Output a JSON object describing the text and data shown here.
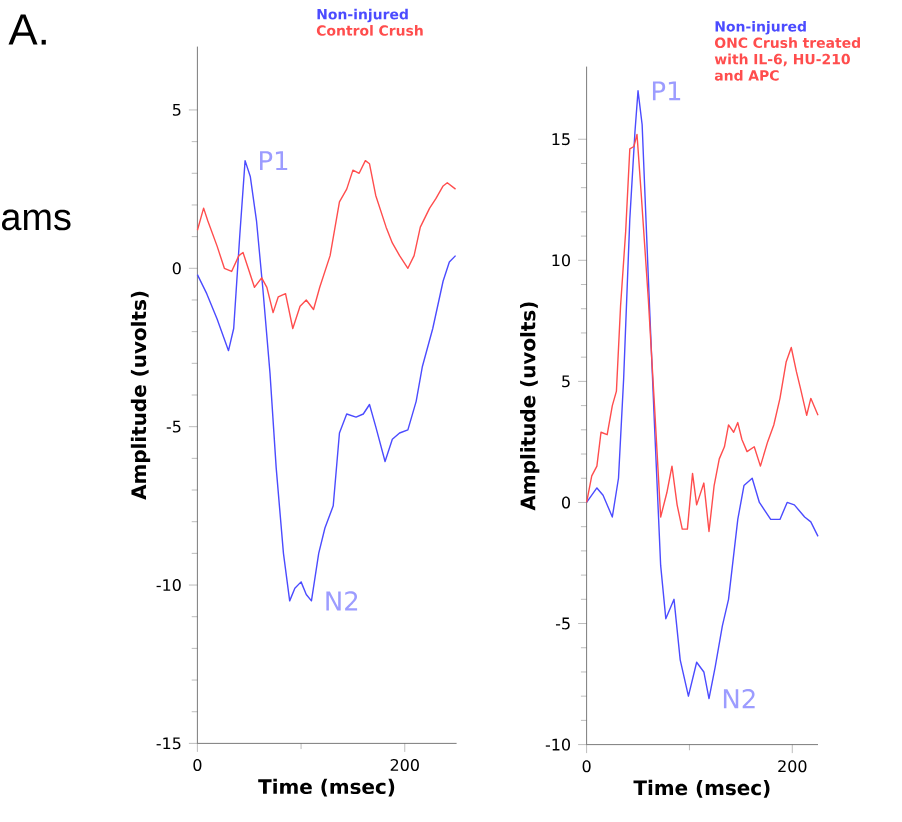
{
  "chart_data": [
    {
      "type": "line",
      "title": "A.",
      "xlabel": "Time (msec)",
      "ylabel": "Amplitude (uvolts)",
      "xlim": [
        0,
        250
      ],
      "ylim": [
        -15,
        7
      ],
      "xticks": [
        0,
        200
      ],
      "yticks": [
        -15,
        -10,
        -5,
        0,
        5
      ],
      "series": [
        {
          "name": "Non-injured",
          "color": "#4b4bff",
          "x": [
            0,
            9,
            19,
            30,
            35,
            41,
            46,
            51,
            57,
            63,
            70,
            76,
            83,
            89,
            94,
            100,
            105,
            110,
            117,
            123,
            131,
            137,
            144,
            153,
            160,
            166,
            172,
            181,
            188,
            195,
            203,
            211,
            217,
            227,
            237,
            243,
            249
          ],
          "values": [
            -0.2,
            -0.8,
            -1.6,
            -2.6,
            -1.9,
            1.1,
            3.4,
            2.9,
            1.5,
            -0.6,
            -3.3,
            -6.3,
            -9.0,
            -10.5,
            -10.1,
            -9.9,
            -10.3,
            -10.5,
            -9.0,
            -8.2,
            -7.5,
            -5.2,
            -4.6,
            -4.7,
            -4.6,
            -4.3,
            -5.0,
            -6.1,
            -5.4,
            -5.2,
            -5.1,
            -4.2,
            -3.1,
            -1.9,
            -0.4,
            0.2,
            0.4
          ]
        },
        {
          "name": "Control Crush",
          "color": "#ff4d4d",
          "x": [
            0,
            6,
            10,
            19,
            26,
            33,
            40,
            44,
            49,
            55,
            62,
            67,
            73,
            78,
            85,
            92,
            99,
            105,
            112,
            118,
            128,
            137,
            144,
            150,
            156,
            162,
            166,
            172,
            182,
            188,
            195,
            203,
            209,
            215,
            224,
            230,
            237,
            241,
            249
          ],
          "values": [
            1.2,
            1.9,
            1.5,
            0.7,
            0.0,
            -0.1,
            0.4,
            0.5,
            0.0,
            -0.6,
            -0.3,
            -0.6,
            -1.4,
            -0.9,
            -0.8,
            -1.9,
            -1.2,
            -1.0,
            -1.3,
            -0.6,
            0.4,
            2.1,
            2.5,
            3.1,
            3.0,
            3.4,
            3.3,
            2.3,
            1.3,
            0.8,
            0.4,
            0.0,
            0.4,
            1.3,
            1.9,
            2.2,
            2.6,
            2.7,
            2.5
          ]
        }
      ],
      "annotations": [
        "ams",
        {
          "text": "P1",
          "x": 46,
          "y": 3.4
        },
        {
          "text": "N2",
          "x": 110,
          "y": -10.5
        }
      ]
    },
    {
      "type": "line",
      "xlabel": "Time (msec)",
      "ylabel": "Amplitude (uvolts)",
      "xlim": [
        0,
        225
      ],
      "ylim": [
        -10,
        18
      ],
      "xticks": [
        0,
        200
      ],
      "yticks": [
        -10,
        -5,
        0,
        5,
        10,
        15
      ],
      "series": [
        {
          "name": "Non-injured",
          "color": "#4b4bff",
          "x": [
            0,
            10,
            16,
            25,
            31,
            36,
            42,
            47,
            50,
            54,
            60,
            66,
            72,
            77,
            85,
            91,
            99,
            107,
            114,
            119,
            125,
            132,
            138,
            147,
            153,
            161,
            168,
            179,
            188,
            195,
            202,
            212,
            218,
            225
          ],
          "values": [
            0,
            0.6,
            0.3,
            -0.6,
            1.0,
            5.1,
            11.7,
            15.3,
            17.0,
            15.6,
            9.3,
            3.2,
            -2.6,
            -4.8,
            -4.0,
            -6.5,
            -8.0,
            -6.6,
            -7.0,
            -8.1,
            -6.8,
            -5.1,
            -4.0,
            -0.7,
            0.7,
            1.0,
            0.0,
            -0.7,
            -0.7,
            0.0,
            -0.1,
            -0.6,
            -0.8,
            -1.4
          ]
        },
        {
          "name": "ONC Crush treated with IL-6, HU-210 and APC",
          "color": "#ff4d4d",
          "x": [
            0,
            5,
            10,
            14,
            20,
            25,
            29,
            33,
            38,
            42,
            46,
            49,
            53,
            60,
            66,
            72,
            78,
            83,
            88,
            93,
            98,
            103,
            107,
            114,
            119,
            124,
            129,
            134,
            138,
            143,
            147,
            151,
            156,
            163,
            169,
            176,
            182,
            188,
            194,
            199,
            204,
            208,
            214,
            218,
            225
          ],
          "values": [
            0,
            1.1,
            1.5,
            2.9,
            2.8,
            4.0,
            4.6,
            8.1,
            11.2,
            14.6,
            14.7,
            15.2,
            12.8,
            8.4,
            4.0,
            -0.6,
            0.4,
            1.5,
            -0.1,
            -1.1,
            -1.1,
            1.2,
            -0.1,
            0.8,
            -1.2,
            0.7,
            1.8,
            2.3,
            3.2,
            2.9,
            3.3,
            2.6,
            2.1,
            2.3,
            1.5,
            2.5,
            3.2,
            4.3,
            5.8,
            6.4,
            5.4,
            4.7,
            3.6,
            4.3,
            3.6
          ]
        }
      ],
      "annotations": [
        {
          "text": "P1",
          "x": 50,
          "y": 17.0
        },
        {
          "text": "N2",
          "x": 119,
          "y": -8.1
        }
      ]
    }
  ]
}
